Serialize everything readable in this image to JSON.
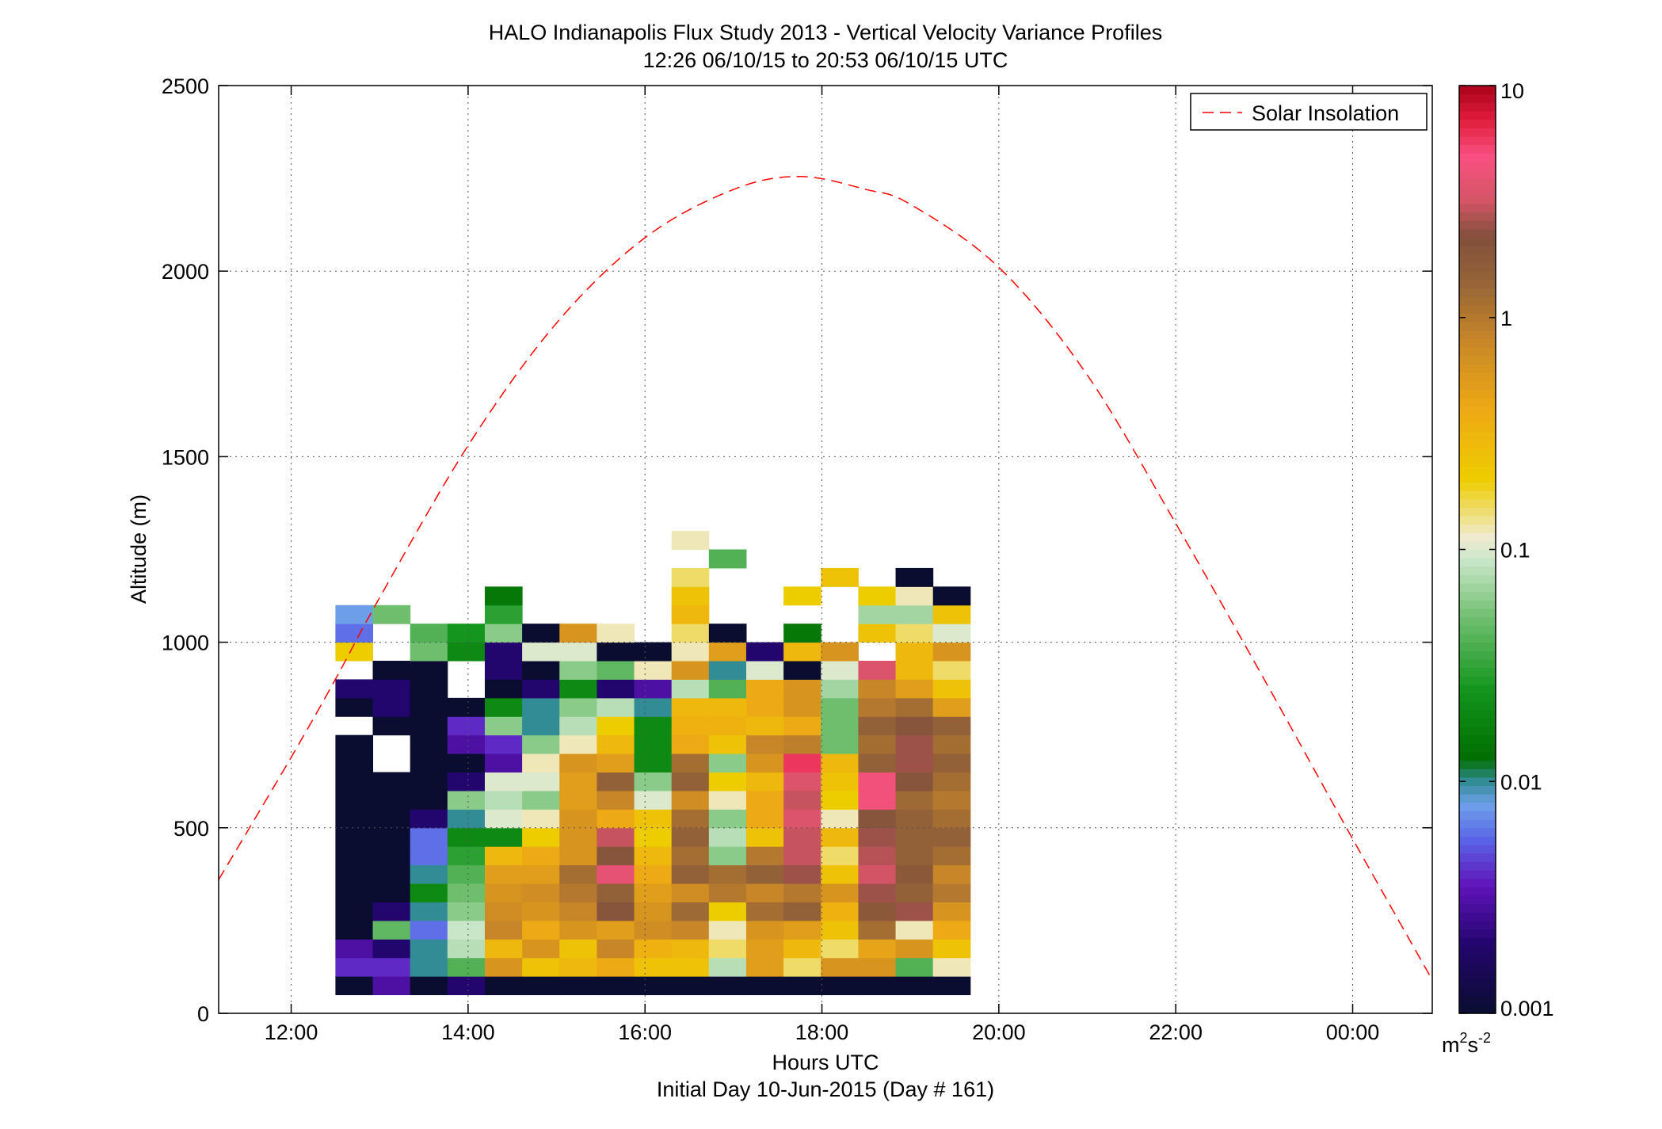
{
  "chart_data": {
    "type": "heatmap",
    "title": "HALO Indianapolis Flux Study 2013 - Vertical Velocity Variance Profiles",
    "subtitle": "12:26 06/10/15 to 20:53 06/10/15  UTC",
    "xlabel": "Hours UTC",
    "xlabel2": "Initial Day 10-Jun-2015 (Day # 161)",
    "ylabel": "Altitude (m)",
    "xlim": [
      11.18,
      24.9
    ],
    "ylim": [
      0,
      2500
    ],
    "xticks": [
      12,
      14,
      16,
      18,
      20,
      22,
      24
    ],
    "xticklabels": [
      "12:00",
      "14:00",
      "16:00",
      "18:00",
      "20:00",
      "22:00",
      "00:00"
    ],
    "yticks": [
      0,
      500,
      1000,
      1500,
      2000,
      2500
    ],
    "yticklabels": [
      "0",
      "500",
      "1000",
      "1500",
      "2000",
      "2500"
    ],
    "grid": true,
    "cell_x_start": 12.5,
    "cell_x_width": 0.4222,
    "cell_y_start": 50,
    "cell_y_height": 50,
    "columns_bottom_to_top": [
      [
        0.001,
        0.004,
        0.003,
        0.001,
        0.001,
        0.001,
        0.001,
        0.001,
        0.001,
        0.001,
        0.001,
        0.001,
        0.001,
        0.001,
        null,
        0.001,
        0.002,
        null,
        0.2,
        0.006,
        0.008
      ],
      [
        0.003,
        0.004,
        0.002,
        0.045,
        0.002,
        0.001,
        0.001,
        0.001,
        0.001,
        0.001,
        0.001,
        0.001,
        null,
        null,
        0.001,
        0.002,
        0.002,
        0.001,
        null,
        null,
        0.05
      ],
      [
        0.001,
        0.01,
        0.01,
        0.006,
        0.01,
        0.02,
        0.01,
        0.006,
        0.006,
        0.002,
        0.001,
        0.001,
        0.001,
        0.001,
        0.001,
        0.001,
        0.001,
        0.001,
        0.05,
        0.04
      ],
      [
        0.002,
        0.04,
        0.08,
        0.09,
        0.06,
        0.05,
        0.04,
        0.03,
        0.02,
        0.01,
        0.06,
        0.002,
        0.001,
        0.003,
        0.004,
        0.001,
        null,
        null,
        0.02,
        0.025
      ],
      [
        0.001,
        0.6,
        0.3,
        0.8,
        0.7,
        0.6,
        0.5,
        0.3,
        0.02,
        0.1,
        0.08,
        0.1,
        0.003,
        0.004,
        0.06,
        0.02,
        0.001,
        0.002,
        0.002,
        0.06,
        0.03,
        0.015
      ],
      [
        0.001,
        0.25,
        0.6,
        0.4,
        0.6,
        0.7,
        0.5,
        0.4,
        0.2,
        0.12,
        0.06,
        0.1,
        0.12,
        0.06,
        0.01,
        0.01,
        0.002,
        0.001,
        0.1,
        0.001
      ],
      [
        0.001,
        0.3,
        0.25,
        0.6,
        0.8,
        1.0,
        1.2,
        0.6,
        0.6,
        0.6,
        0.5,
        0.5,
        0.6,
        0.12,
        0.08,
        0.06,
        0.02,
        0.06,
        0.1,
        0.6
      ],
      [
        0.001,
        0.4,
        0.8,
        0.5,
        2.0,
        1.5,
        4.0,
        2.0,
        3.0,
        0.4,
        0.8,
        1.5,
        0.5,
        0.3,
        0.2,
        0.08,
        0.002,
        0.045,
        0.001,
        0.12
      ],
      [
        0.001,
        0.25,
        0.35,
        0.7,
        0.6,
        0.5,
        0.4,
        0.3,
        0.2,
        0.25,
        0.1,
        0.06,
        0.02,
        0.02,
        0.02,
        0.01,
        0.003,
        0.12,
        0.001
      ],
      [
        0.001,
        0.25,
        0.3,
        0.8,
        1.3,
        0.7,
        1.5,
        1.2,
        1.5,
        1.2,
        0.7,
        1.5,
        1.2,
        0.4,
        0.35,
        0.3,
        0.08,
        0.6,
        0.12,
        0.15,
        0.3,
        0.25,
        0.15,
        null,
        0.12
      ],
      [
        0.001,
        0.08,
        0.15,
        0.12,
        0.2,
        1.0,
        1.2,
        0.06,
        0.08,
        0.06,
        0.12,
        0.2,
        0.06,
        0.25,
        0.35,
        0.3,
        0.04,
        0.01,
        0.5,
        0.001,
        null,
        null,
        null,
        0.04
      ],
      [
        0.001,
        0.5,
        0.5,
        0.6,
        1.2,
        0.8,
        1.5,
        1.0,
        0.25,
        0.4,
        0.4,
        0.3,
        0.6,
        0.8,
        0.3,
        0.4,
        0.4,
        0.1,
        0.002
      ],
      [
        0.001,
        0.15,
        0.3,
        0.5,
        1.5,
        1.0,
        2.5,
        3.0,
        3.0,
        3.5,
        3.0,
        3.5,
        6.0,
        0.9,
        0.4,
        0.6,
        0.6,
        0.001,
        0.3,
        0.015,
        null,
        0.2
      ],
      [
        0.001,
        0.6,
        0.15,
        0.25,
        0.35,
        0.6,
        0.25,
        0.15,
        0.3,
        0.12,
        0.2,
        0.25,
        0.3,
        0.05,
        0.05,
        0.05,
        0.07,
        0.1,
        0.6,
        null,
        null,
        null,
        0.25
      ],
      [
        0.001,
        0.6,
        0.45,
        1.2,
        1.8,
        2.5,
        3.2,
        2.8,
        2.5,
        2.0,
        4.5,
        4.5,
        1.5,
        1.2,
        1.5,
        1.0,
        0.8,
        3.5,
        null,
        0.25,
        0.07,
        0.2
      ],
      [
        0.001,
        0.04,
        0.6,
        0.12,
        2.5,
        1.5,
        1.8,
        1.5,
        1.5,
        1.5,
        1.3,
        2.0,
        2.5,
        2.5,
        2.0,
        1.2,
        0.5,
        0.3,
        0.3,
        0.15,
        0.07,
        0.12,
        0.001
      ],
      [
        0.001,
        0.12,
        0.25,
        0.4,
        0.6,
        1.0,
        0.8,
        1.2,
        1.5,
        1.2,
        1.0,
        1.2,
        1.5,
        1.2,
        1.5,
        0.5,
        0.25,
        0.15,
        0.6,
        0.1,
        0.25,
        0.001
      ]
    ],
    "colorbar": {
      "scale": "log",
      "min": 0.001,
      "max": 10,
      "ticks": [
        0.001,
        0.01,
        0.1,
        1,
        10
      ],
      "ticklabels": [
        "0.001",
        "0.01",
        "0.1",
        "1",
        "10"
      ],
      "unit_base": "m",
      "unit_sup1": "2",
      "unit_mid": "s",
      "unit_sup2": "-2"
    },
    "series": [
      {
        "name": "Solar Insolation",
        "color": "#ff0000",
        "style": "dashed",
        "x": [
          11.18,
          12.0,
          12.5,
          13.0,
          14.0,
          15.0,
          16.0,
          17.0,
          17.75,
          18.5,
          19.0,
          20.0,
          21.0,
          22.0,
          23.0,
          24.0,
          24.9
        ],
        "y": [
          360,
          690,
          900,
          1120,
          1530,
          1860,
          2090,
          2220,
          2255,
          2220,
          2180,
          2010,
          1720,
          1320,
          900,
          470,
          90
        ]
      }
    ],
    "legend": {
      "position": "top-right"
    }
  }
}
